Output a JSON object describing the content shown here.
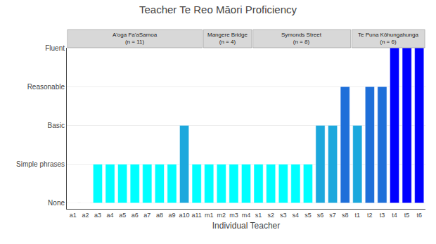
{
  "chart_data": {
    "type": "bar",
    "title": "Teacher Te Reo Māori Proficiency",
    "xlabel": "Individual Teacher",
    "categories": [
      "a1",
      "a2",
      "a3",
      "a4",
      "a5",
      "a6",
      "a7",
      "a8",
      "a9",
      "a10",
      "a11",
      "m1",
      "m2",
      "m3",
      "m4",
      "s1",
      "s2",
      "s3",
      "s4",
      "s5",
      "s6",
      "s7",
      "s8",
      "t1",
      "t2",
      "t3",
      "t4",
      "t5",
      "t6"
    ],
    "values": [
      0,
      0,
      1,
      1,
      1,
      1,
      1,
      1,
      1,
      2,
      1,
      1,
      1,
      1,
      1,
      1,
      1,
      1,
      1,
      1,
      2,
      2,
      3,
      2,
      3,
      3,
      4,
      4,
      4
    ],
    "colors": [
      "#00FFFF",
      "#00FFFF",
      "#00FFFF",
      "#00FFFF",
      "#00FFFF",
      "#00FFFF",
      "#00FFFF",
      "#00FFFF",
      "#00FFFF",
      "#1CA8DD",
      "#00FFFF",
      "#00FFFF",
      "#00FFFF",
      "#00FFFF",
      "#00FFFF",
      "#00FFFF",
      "#00FFFF",
      "#00FFFF",
      "#00FFFF",
      "#00FFFF",
      "#1CA8DD",
      "#1CA8DD",
      "#1E6FD9",
      "#1CA8DD",
      "#1E6FD9",
      "#1E6FD9",
      "#0000FF",
      "#0000FF",
      "#0000FF"
    ],
    "ylim": [
      -0.15,
      4.0
    ],
    "yticks": [
      {
        "value": 0,
        "label": "None"
      },
      {
        "value": 1,
        "label": "Simple phrases"
      },
      {
        "value": 2,
        "label": "Basic"
      },
      {
        "value": 3,
        "label": "Reasonable"
      },
      {
        "value": 4,
        "label": "Fluent"
      }
    ],
    "grid": true,
    "annotations": [
      {
        "text": "A'oga Fa'aSamoa (n = 11)",
        "start": "a1",
        "end": "a11"
      },
      {
        "text": "Mangere Bridge (n = 4)",
        "start": "m1",
        "end": "m4"
      },
      {
        "text": "Symonds Street (n = 8)",
        "start": "s1",
        "end": "s8"
      },
      {
        "text": "Te Puna Kōhungahunga (n = 6)",
        "start": "t1",
        "end": "t6"
      }
    ]
  }
}
